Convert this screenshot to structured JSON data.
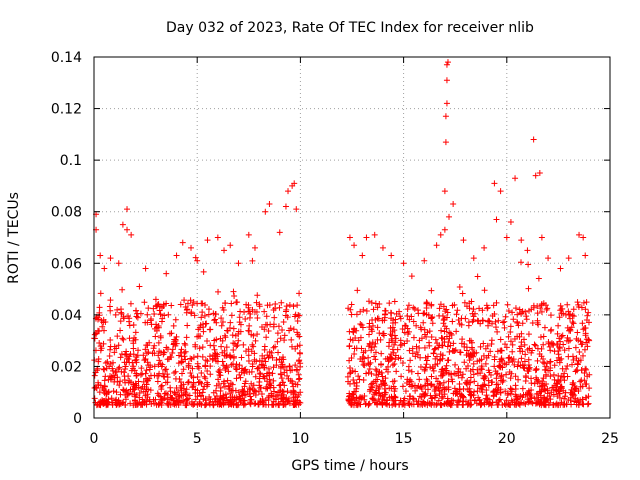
{
  "chart_data": {
    "type": "scatter",
    "title": "Day 032 of 2023, Rate Of TEC Index for receiver nlib",
    "xlabel": "GPS time / hours",
    "ylabel": "ROTI / TECUs",
    "xlim": [
      0,
      25
    ],
    "ylim": [
      0,
      0.14
    ],
    "xticks": [
      0,
      5,
      10,
      15,
      20,
      25
    ],
    "yticks": [
      0,
      0.02,
      0.04,
      0.06,
      0.08,
      0.1,
      0.12,
      0.14
    ],
    "xtick_labels": [
      "0",
      "5",
      "10",
      "15",
      "20",
      "25"
    ],
    "ytick_labels": [
      "0",
      "0.02",
      "0.04",
      "0.06",
      "0.08",
      "0.1",
      "0.12",
      "0.14"
    ],
    "grid": true,
    "marker": "plus",
    "marker_color": "#ff0000",
    "data_gaps_hours": [
      [
        10.0,
        12.3
      ]
    ],
    "series": [
      {
        "name": "ROTI",
        "points": [
          [
            0.1,
            0.079
          ],
          [
            0.1,
            0.073
          ],
          [
            0.3,
            0.063
          ],
          [
            0.5,
            0.058
          ],
          [
            0.8,
            0.062
          ],
          [
            1.2,
            0.06
          ],
          [
            1.4,
            0.075
          ],
          [
            1.6,
            0.073
          ],
          [
            1.6,
            0.081
          ],
          [
            1.8,
            0.071
          ],
          [
            2.2,
            0.051
          ],
          [
            2.5,
            0.058
          ],
          [
            3.0,
            0.046
          ],
          [
            3.5,
            0.056
          ],
          [
            4.0,
            0.063
          ],
          [
            4.3,
            0.068
          ],
          [
            4.7,
            0.066
          ],
          [
            5.0,
            0.061
          ],
          [
            5.5,
            0.069
          ],
          [
            6.0,
            0.07
          ],
          [
            6.3,
            0.065
          ],
          [
            6.6,
            0.067
          ],
          [
            7.0,
            0.06
          ],
          [
            7.5,
            0.071
          ],
          [
            7.8,
            0.066
          ],
          [
            8.3,
            0.08
          ],
          [
            8.5,
            0.083
          ],
          [
            9.0,
            0.072
          ],
          [
            9.3,
            0.082
          ],
          [
            9.4,
            0.088
          ],
          [
            9.6,
            0.09
          ],
          [
            9.7,
            0.091
          ],
          [
            9.8,
            0.081
          ],
          [
            12.4,
            0.07
          ],
          [
            12.6,
            0.067
          ],
          [
            13.0,
            0.063
          ],
          [
            13.2,
            0.07
          ],
          [
            13.6,
            0.071
          ],
          [
            14.0,
            0.066
          ],
          [
            14.4,
            0.063
          ],
          [
            15.0,
            0.06
          ],
          [
            15.4,
            0.055
          ],
          [
            16.0,
            0.061
          ],
          [
            16.6,
            0.067
          ],
          [
            16.8,
            0.071
          ],
          [
            17.0,
            0.073
          ],
          [
            17.0,
            0.088
          ],
          [
            17.05,
            0.107
          ],
          [
            17.05,
            0.117
          ],
          [
            17.1,
            0.122
          ],
          [
            17.1,
            0.131
          ],
          [
            17.1,
            0.137
          ],
          [
            17.15,
            0.138
          ],
          [
            17.2,
            0.078
          ],
          [
            17.4,
            0.083
          ],
          [
            17.9,
            0.069
          ],
          [
            18.4,
            0.062
          ],
          [
            18.9,
            0.066
          ],
          [
            19.4,
            0.091
          ],
          [
            19.5,
            0.077
          ],
          [
            19.7,
            0.088
          ],
          [
            20.0,
            0.07
          ],
          [
            20.2,
            0.076
          ],
          [
            20.4,
            0.093
          ],
          [
            20.7,
            0.069
          ],
          [
            21.0,
            0.065
          ],
          [
            21.3,
            0.108
          ],
          [
            21.4,
            0.094
          ],
          [
            21.6,
            0.095
          ],
          [
            21.7,
            0.07
          ],
          [
            22.0,
            0.062
          ],
          [
            22.6,
            0.058
          ],
          [
            23.0,
            0.062
          ],
          [
            23.5,
            0.071
          ],
          [
            23.7,
            0.07
          ],
          [
            23.8,
            0.063
          ]
        ]
      }
    ],
    "dense_band": {
      "description": "bulk of points",
      "y_range": [
        0.005,
        0.045
      ],
      "x_segments": [
        [
          0.0,
          10.0
        ],
        [
          12.3,
          24.0
        ]
      ]
    }
  }
}
